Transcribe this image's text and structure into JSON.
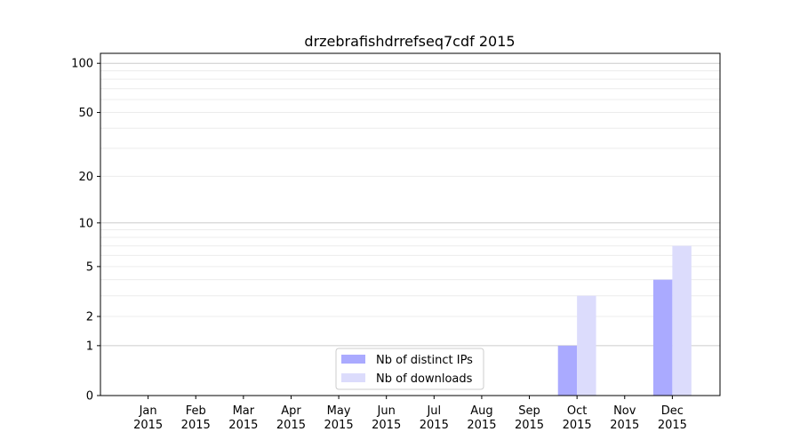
{
  "chart_data": {
    "type": "bar",
    "title": "drzebrafishdrrefseq7cdf 2015",
    "xlabel": "",
    "ylabel": "",
    "categories": [
      "Jan\n2015",
      "Feb\n2015",
      "Mar\n2015",
      "Apr\n2015",
      "May\n2015",
      "Jun\n2015",
      "Jul\n2015",
      "Aug\n2015",
      "Sep\n2015",
      "Oct\n2015",
      "Nov\n2015",
      "Dec\n2015"
    ],
    "series": [
      {
        "name": "Nb of distinct IPs",
        "color": "#aaaaff",
        "values": [
          0,
          0,
          0,
          0,
          0,
          0,
          0,
          0,
          0,
          1,
          0,
          4
        ]
      },
      {
        "name": "Nb of downloads",
        "color": "#dcdcfc",
        "values": [
          0,
          0,
          0,
          0,
          0,
          0,
          0,
          0,
          0,
          3,
          0,
          7
        ]
      }
    ],
    "yscale": "log(1+y)",
    "ylim": [
      0,
      115
    ],
    "yticks": [
      0,
      1,
      2,
      5,
      10,
      20,
      50,
      100
    ],
    "grid": true,
    "legend_position": "lower-center"
  }
}
